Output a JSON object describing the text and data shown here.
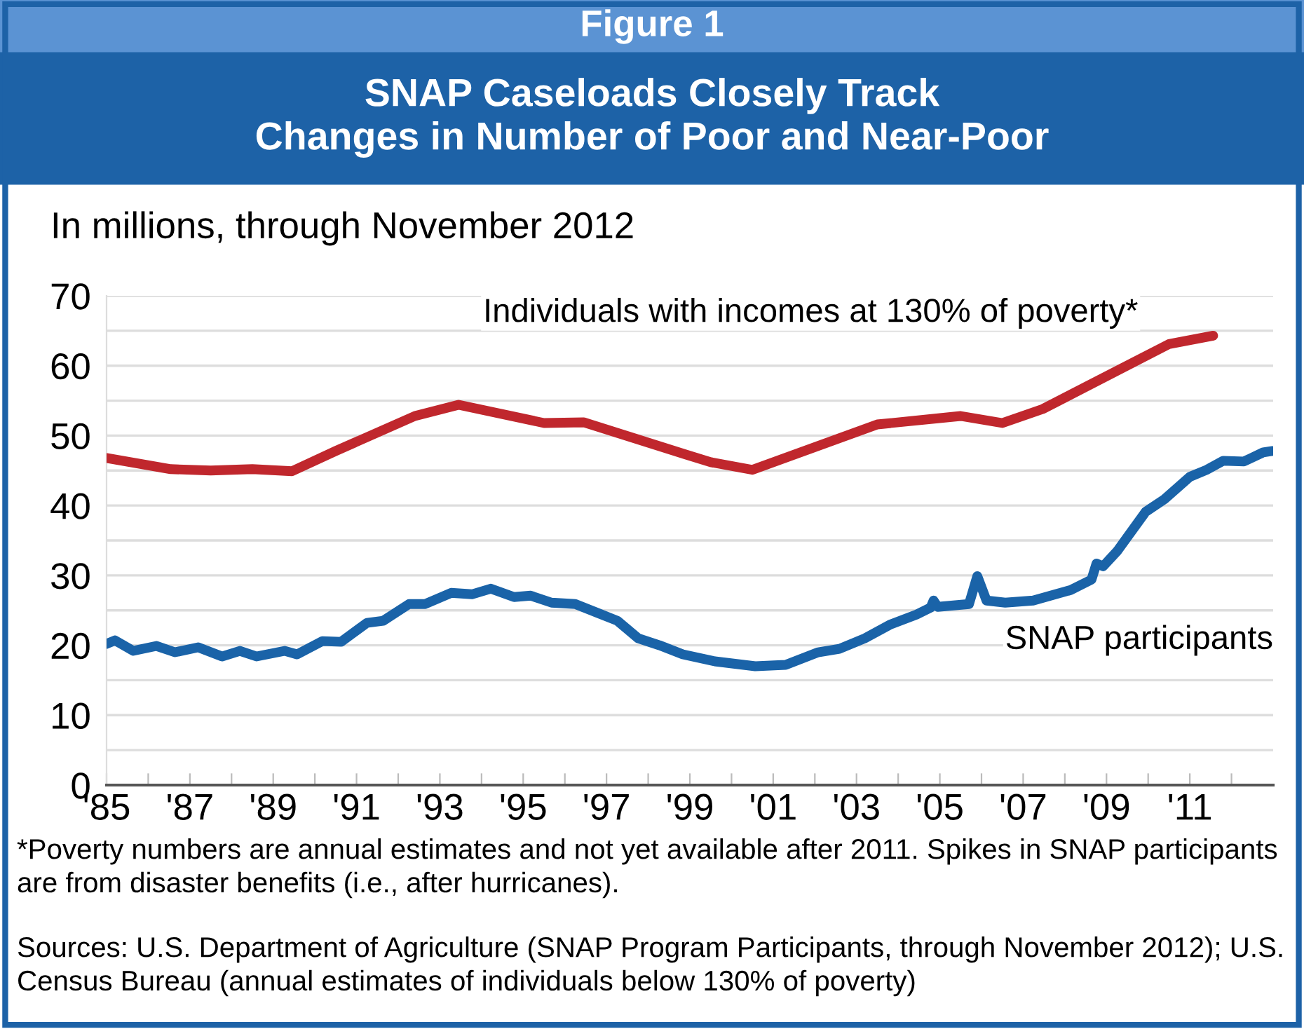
{
  "chart_data": {
    "type": "line",
    "subtitle": "Figure 1",
    "title": "SNAP Caseloads Closely Track\nChanges in Number of Poor and Near-Poor",
    "ylabel": "In millions, through November 2012",
    "series": [
      {
        "name": "Individuals with incomes at 130% of poverty*",
        "color": "#c0272d",
        "x": [
          1985.0,
          1986.54,
          1987.5,
          1988.5,
          1989.45,
          1990.5,
          1992.4,
          1993.45,
          1995.5,
          1996.45,
          1998.9,
          1999.5,
          2000.5,
          2003.5,
          2005.5,
          2006.5,
          2007.47,
          2010.5,
          2011.56
        ],
        "values": [
          46.8,
          45.2,
          45.0,
          45.2,
          44.9,
          47.8,
          52.8,
          54.4,
          51.8,
          51.9,
          47.3,
          46.2,
          45.1,
          51.6,
          52.8,
          51.8,
          53.8,
          63.1,
          64.3
        ]
      },
      {
        "name": "SNAP participants",
        "color": "#1a63a8",
        "x": [
          1985.0,
          1985.2,
          1985.64,
          1986.2,
          1986.64,
          1987.2,
          1987.77,
          1988.2,
          1988.6,
          1989.28,
          1989.57,
          1990.18,
          1990.63,
          1991.25,
          1991.64,
          1992.26,
          1992.65,
          1993.27,
          1993.77,
          1994.22,
          1994.78,
          1995.18,
          1995.68,
          1996.25,
          1996.8,
          1997.26,
          1997.76,
          1998.27,
          1998.83,
          1999.6,
          2000.57,
          2001.3,
          2002.08,
          2002.59,
          2003.2,
          2003.82,
          2004.44,
          2004.78,
          2004.85,
          2004.95,
          2005.7,
          2005.9,
          2006.12,
          2006.57,
          2007.24,
          2008.14,
          2008.64,
          2008.76,
          2008.92,
          2009.26,
          2009.94,
          2010.39,
          2011.0,
          2011.4,
          2011.8,
          2012.3,
          2012.76,
          2012.98
        ],
        "values": [
          20.2,
          20.7,
          19.2,
          19.9,
          19.0,
          19.7,
          18.4,
          19.2,
          18.4,
          19.2,
          18.7,
          20.6,
          20.5,
          23.2,
          23.5,
          25.9,
          25.9,
          27.5,
          27.3,
          28.1,
          26.9,
          27.1,
          26.1,
          25.9,
          24.6,
          23.5,
          21.0,
          20.0,
          18.7,
          17.7,
          17.0,
          17.2,
          19.0,
          19.5,
          21.0,
          23.0,
          24.4,
          25.4,
          26.4,
          25.5,
          25.9,
          29.9,
          26.4,
          26.1,
          26.4,
          27.9,
          29.4,
          31.7,
          31.3,
          33.5,
          39.1,
          40.9,
          44.1,
          45.1,
          46.4,
          46.3,
          47.6,
          47.8
        ]
      }
    ],
    "xlim": [
      1985,
      2013
    ],
    "xticks": [
      {
        "value": 1985,
        "label": "'85"
      },
      {
        "value": 1986,
        "label": null
      },
      {
        "value": 1987,
        "label": "'87"
      },
      {
        "value": 1988,
        "label": null
      },
      {
        "value": 1989,
        "label": "'89"
      },
      {
        "value": 1990,
        "label": null
      },
      {
        "value": 1991,
        "label": "'91"
      },
      {
        "value": 1992,
        "label": null
      },
      {
        "value": 1993,
        "label": "'93"
      },
      {
        "value": 1994,
        "label": null
      },
      {
        "value": 1995,
        "label": "'95"
      },
      {
        "value": 1996,
        "label": null
      },
      {
        "value": 1997,
        "label": "'97"
      },
      {
        "value": 1998,
        "label": null
      },
      {
        "value": 1999,
        "label": "'99"
      },
      {
        "value": 2000,
        "label": null
      },
      {
        "value": 2001,
        "label": "'01"
      },
      {
        "value": 2002,
        "label": null
      },
      {
        "value": 2003,
        "label": "'03"
      },
      {
        "value": 2004,
        "label": null
      },
      {
        "value": 2005,
        "label": "'05"
      },
      {
        "value": 2006,
        "label": null
      },
      {
        "value": 2007,
        "label": "'07"
      },
      {
        "value": 2008,
        "label": null
      },
      {
        "value": 2009,
        "label": "'09"
      },
      {
        "value": 2010,
        "label": null
      },
      {
        "value": 2011,
        "label": "'11"
      },
      {
        "value": 2012,
        "label": null
      }
    ],
    "ylim": [
      0,
      70
    ],
    "yticks": [
      0,
      {
        "value": 5,
        "label": null
      },
      10,
      {
        "value": 15,
        "label": null
      },
      20,
      {
        "value": 25,
        "label": null
      },
      30,
      {
        "value": 35,
        "label": null
      },
      40,
      {
        "value": 45,
        "label": null
      },
      50,
      {
        "value": 55,
        "label": null
      },
      60,
      {
        "value": 65,
        "label": null
      },
      70
    ],
    "grid": "y",
    "legend": false,
    "marker": "none",
    "line_style": "solid",
    "annotations": [
      "*Poverty numbers are annual estimates and not yet available after 2011. Spikes in SNAP participants are from disaster benefits (i.e., after hurricanes).",
      "Sources: U.S. Department of Agriculture (SNAP Program Participants, through November 2012); U.S. Census Bureau (annual estimates of individuals below 130% of poverty)"
    ]
  }
}
